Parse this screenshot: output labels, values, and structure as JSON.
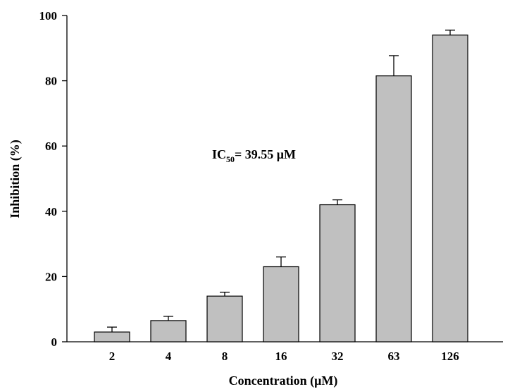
{
  "chart_data": {
    "type": "bar",
    "categories": [
      "2",
      "4",
      "8",
      "16",
      "32",
      "63",
      "126"
    ],
    "series": [
      {
        "values": [
          3,
          6.5,
          14,
          23,
          42,
          81.5,
          94
        ],
        "errors": [
          1.5,
          1.3,
          1.2,
          3,
          1.5,
          6.2,
          1.5
        ]
      }
    ],
    "title": "",
    "xlabel": "Concentration (μM)",
    "ylabel": "Inhibition (%)",
    "ylim": [
      0,
      100
    ],
    "yticks": [
      "0",
      "20",
      "40",
      "60",
      "80",
      "100"
    ],
    "annotation": {
      "prefix": "IC",
      "subscript": "50",
      "suffix": "= 39.55 μM"
    },
    "grid": false,
    "legend": "none",
    "colors": {
      "bar_fill": "#c0c0c0",
      "bar_stroke": "#000000",
      "axis": "#000000"
    }
  }
}
